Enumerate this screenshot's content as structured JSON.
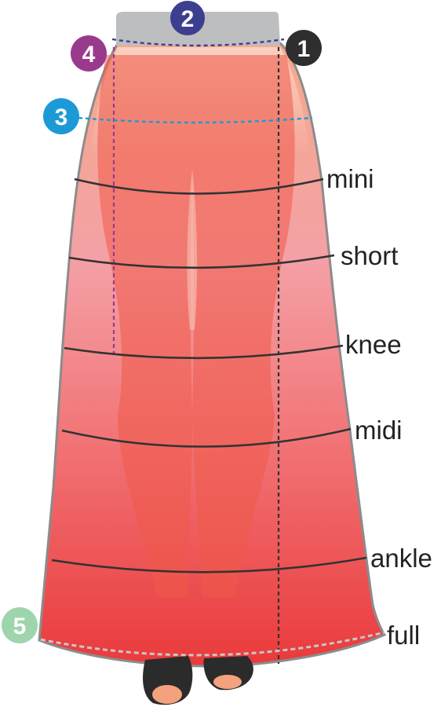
{
  "colors": {
    "waistband": "#bdbec0",
    "skirt_top": "#f6a98c",
    "skirt_bottom": "#ea3a3c",
    "skirt_outline": "#8c8c8c",
    "legs": "#ef5a48",
    "lines": "#333333",
    "shoe": "#2b2b2b",
    "toe": "#f3a27d"
  },
  "markers": [
    {
      "number": "1",
      "color": "#2e2e2e"
    },
    {
      "number": "2",
      "color": "#3c3e8f"
    },
    {
      "number": "3",
      "color": "#1d9ad6"
    },
    {
      "number": "4",
      "color": "#9a3a8c"
    },
    {
      "number": "5",
      "color": "#9ed5ac"
    }
  ],
  "length_labels": {
    "mini": "mini",
    "short": "short",
    "knee": "knee",
    "midi": "midi",
    "ankle": "ankle",
    "full": "full"
  }
}
